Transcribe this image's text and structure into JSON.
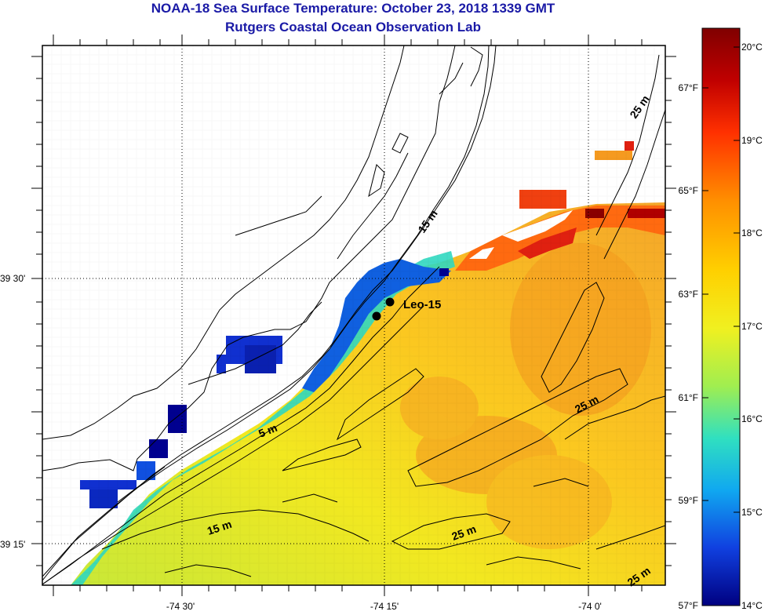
{
  "title": "NOAA-18 Sea Surface Temperature:  October 23, 2018 1339 GMT",
  "subtitle": "Rutgers Coastal Ocean Observation Lab",
  "axes": {
    "longitude_ticks": [
      "-74 30'",
      "-74 15'",
      "-74 0'"
    ],
    "latitude_ticks": [
      "39 30'",
      "39 15'"
    ]
  },
  "map_labels": {
    "station": "Leo-15",
    "contours": [
      "15 m",
      "5 m",
      "15 m",
      "25 m",
      "25 m",
      "25 m",
      "25 m"
    ]
  },
  "colorbar": {
    "celsius_ticks": [
      "20°C",
      "19°C",
      "18°C",
      "17°C",
      "16°C",
      "15°C",
      "14°C"
    ],
    "fahrenheit_ticks": [
      "67°F",
      "65°F",
      "63°F",
      "61°F",
      "59°F",
      "57°F"
    ],
    "colors": [
      "#800000",
      "#e00000",
      "#ff6a00",
      "#ffb000",
      "#ffee00",
      "#b8ee30",
      "#40e0c0",
      "#10b0e8",
      "#1060e0",
      "#1020c0",
      "#000080"
    ]
  },
  "sst_palette": {
    "ocean_warm": "#f5a623",
    "ocean_mid": "#fac020",
    "ocean_cool": "#e8e41e",
    "ocean_near": "#b8e030",
    "coastal": "#30d8c0",
    "cold": "#1040e0",
    "coldest": "#000090",
    "hot_patch": "#e83a10"
  }
}
